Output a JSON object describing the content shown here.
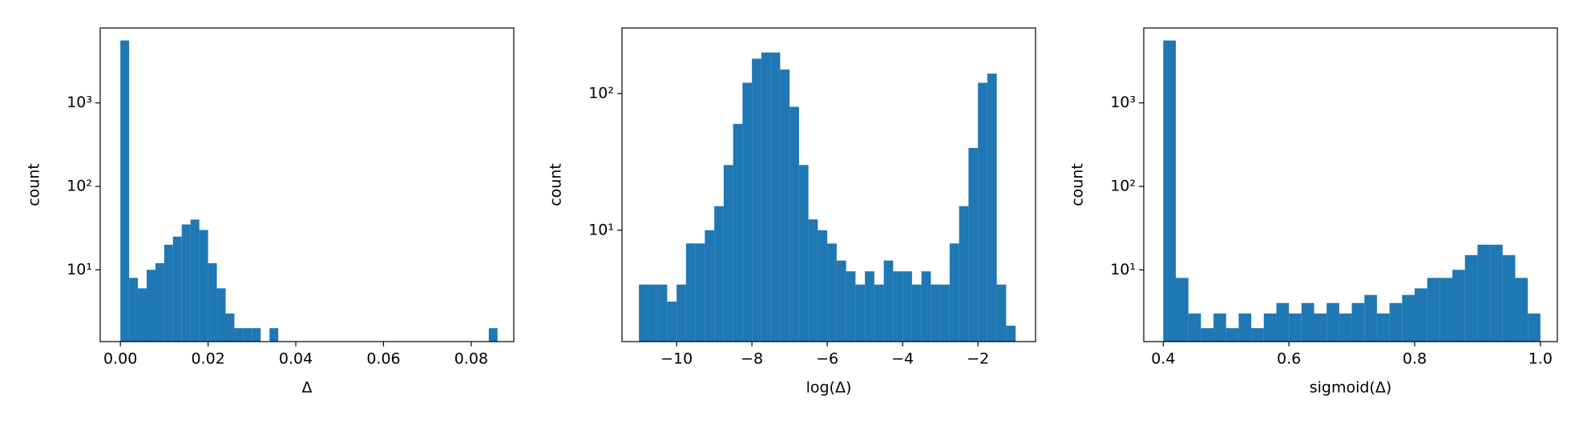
{
  "chart_data": [
    {
      "type": "histogram",
      "xlabel": "Δ",
      "ylabel": "count",
      "color": "#1f77b4",
      "log_y": true,
      "bins": [
        0,
        0.002,
        0.004,
        0.006,
        0.008,
        0.01,
        0.012,
        0.014,
        0.016,
        0.018,
        0.02,
        0.022,
        0.024,
        0.026,
        0.028,
        0.03,
        0.032,
        0.034,
        0.036,
        0.038,
        0.04,
        0.042,
        0.044,
        0.046,
        0.048,
        0.05,
        0.052,
        0.054,
        0.056,
        0.058,
        0.06,
        0.062,
        0.064,
        0.066,
        0.068,
        0.07,
        0.072,
        0.074,
        0.076,
        0.078,
        0.08,
        0.082,
        0.084,
        0.086
      ],
      "counts": [
        5600,
        8,
        6,
        10,
        12,
        20,
        25,
        35,
        40,
        30,
        12,
        6,
        3,
        2,
        2,
        2,
        0,
        2,
        0,
        0,
        0,
        0,
        0,
        0,
        0,
        0,
        0,
        0,
        0,
        0,
        0,
        0,
        0,
        0,
        0,
        0,
        0,
        0,
        0,
        0,
        0,
        0,
        2
      ],
      "xlim": [
        -0.0046,
        0.0897
      ],
      "ylim": [
        1.38,
        7900
      ],
      "xticks": [
        {
          "value": 0,
          "label": "0.00"
        },
        {
          "value": 0.02,
          "label": "0.02"
        },
        {
          "value": 0.04,
          "label": "0.04"
        },
        {
          "value": 0.06,
          "label": "0.06"
        },
        {
          "value": 0.08,
          "label": "0.08"
        }
      ],
      "yticks": [
        {
          "value": 10,
          "label": "10¹"
        },
        {
          "value": 100,
          "label": "10²"
        },
        {
          "value": 1000,
          "label": "10³"
        }
      ]
    },
    {
      "type": "histogram",
      "xlabel": "log(Δ)",
      "ylabel": "count",
      "color": "#1f77b4",
      "log_y": true,
      "bins": [
        -11,
        -10.75,
        -10.5,
        -10.25,
        -10,
        -9.75,
        -9.5,
        -9.25,
        -9,
        -8.75,
        -8.5,
        -8.25,
        -8,
        -7.75,
        -7.5,
        -7.25,
        -7,
        -6.75,
        -6.5,
        -6.25,
        -6,
        -5.75,
        -5.5,
        -5.25,
        -5,
        -4.75,
        -4.5,
        -4.25,
        -4,
        -3.75,
        -3.5,
        -3.25,
        -3,
        -2.75,
        -2.5,
        -2.25,
        -2,
        -1.75,
        -1.5,
        -1.25,
        -1
      ],
      "counts": [
        4,
        4,
        4,
        3,
        4,
        8,
        8,
        10,
        15,
        30,
        60,
        120,
        180,
        200,
        200,
        150,
        80,
        30,
        12,
        10,
        8,
        6,
        5,
        4,
        5,
        4,
        6,
        5,
        5,
        4,
        5,
        4,
        4,
        8,
        15,
        40,
        120,
        140,
        4,
        2
      ],
      "xlim": [
        -11.45,
        -0.47
      ],
      "ylim": [
        1.53,
        302
      ],
      "xticks": [
        {
          "value": -10,
          "label": "−10"
        },
        {
          "value": -8,
          "label": "−8"
        },
        {
          "value": -6,
          "label": "−6"
        },
        {
          "value": -4,
          "label": "−4"
        },
        {
          "value": -2,
          "label": "−2"
        }
      ],
      "yticks": [
        {
          "value": 10,
          "label": "10¹"
        },
        {
          "value": 100,
          "label": "10²"
        }
      ]
    },
    {
      "type": "histogram",
      "xlabel": "sigmoid(Δ)",
      "ylabel": "count",
      "color": "#1f77b4",
      "log_y": true,
      "bins": [
        0.4,
        0.42,
        0.44,
        0.46,
        0.48,
        0.5,
        0.52,
        0.54,
        0.56,
        0.58,
        0.6,
        0.62,
        0.64,
        0.66,
        0.68,
        0.7,
        0.72,
        0.74,
        0.76,
        0.78,
        0.8,
        0.82,
        0.84,
        0.86,
        0.88,
        0.9,
        0.92,
        0.94,
        0.96,
        0.98,
        1.0
      ],
      "counts": [
        5600,
        8,
        3,
        2,
        3,
        2,
        3,
        2,
        3,
        4,
        3,
        4,
        3,
        4,
        3,
        4,
        5,
        3,
        4,
        5,
        6,
        8,
        8,
        10,
        15,
        20,
        20,
        15,
        8,
        3
      ],
      "xlim": [
        0.369,
        1.027
      ],
      "ylim": [
        1.38,
        7900
      ],
      "xticks": [
        0.4,
        0.6,
        0.8,
        {
          "value": 1,
          "label": "1.0"
        }
      ],
      "yticks": [
        {
          "value": 10,
          "label": "10¹"
        },
        {
          "value": 100,
          "label": "10²"
        },
        {
          "value": 1000,
          "label": "10³"
        }
      ]
    }
  ]
}
